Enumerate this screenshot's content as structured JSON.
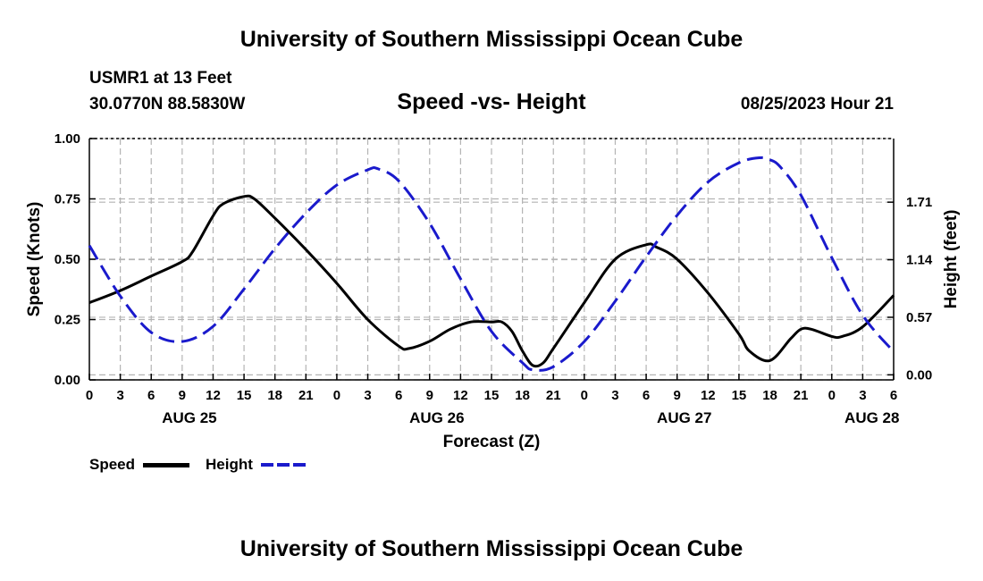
{
  "header": {
    "title": "University of Southern Mississippi Ocean Cube",
    "station": "USMR1 at 13 Feet",
    "coords": "30.0770N  88.5830W",
    "plot_title": "Speed -vs- Height",
    "datetime": "08/25/2023 Hour 21"
  },
  "footer": {
    "title": "University of Southern Mississippi Ocean Cube"
  },
  "legend": {
    "speed": "Speed",
    "height": "Height"
  },
  "colors": {
    "speed": "#000000",
    "height": "#1a1acc",
    "grid": "#b4b4b4"
  },
  "chart_data": {
    "type": "line",
    "title": "Speed -vs- Height",
    "xlabel": "Forecast (Z)",
    "ylabel": "Speed (Knots)",
    "y2label": "Height (feet)",
    "xlim": [
      0,
      78
    ],
    "ylim": [
      0,
      1.0
    ],
    "y2lim": [
      -0.05,
      2.34
    ],
    "x_ticks": [
      0,
      3,
      6,
      9,
      12,
      15,
      18,
      21,
      24,
      27,
      30,
      33,
      36,
      39,
      42,
      45,
      48,
      51,
      54,
      57,
      60,
      63,
      66,
      69,
      72,
      75,
      78
    ],
    "x_tick_labels": [
      "0",
      "3",
      "6",
      "9",
      "12",
      "15",
      "18",
      "21",
      "0",
      "3",
      "6",
      "9",
      "12",
      "15",
      "18",
      "21",
      "0",
      "3",
      "6",
      "9",
      "12",
      "15",
      "18",
      "21",
      "0",
      "3",
      "6"
    ],
    "y_ticks": [
      0,
      0.25,
      0.5,
      0.75,
      1.0
    ],
    "y_tick_labels": [
      "0.00",
      "0.25",
      "0.50",
      "0.75",
      "1.00"
    ],
    "y2_ticks": [
      0.0,
      0.57,
      1.14,
      1.71
    ],
    "y2_tick_labels": [
      "0.00",
      "0.57",
      "1.14",
      "1.71"
    ],
    "date_labels": [
      {
        "x": 9.7,
        "label": "AUG 25"
      },
      {
        "x": 33.7,
        "label": "AUG 26"
      },
      {
        "x": 57.7,
        "label": "AUG 27"
      },
      {
        "x": 75.9,
        "label": "AUG 28"
      }
    ],
    "series": [
      {
        "name": "Speed",
        "axis": "left",
        "style": "solid",
        "x": [
          0,
          3,
          6,
          9,
          10,
          12,
          13,
          15,
          16,
          18,
          21,
          24,
          27,
          30,
          31,
          33,
          35,
          37,
          39,
          40,
          41,
          42,
          43,
          44,
          45,
          48,
          51,
          54,
          55,
          57,
          60,
          63,
          64,
          66,
          68,
          69,
          70,
          72,
          73,
          75,
          78
        ],
        "values": [
          0.32,
          0.37,
          0.43,
          0.49,
          0.53,
          0.68,
          0.73,
          0.76,
          0.75,
          0.67,
          0.54,
          0.4,
          0.25,
          0.14,
          0.13,
          0.16,
          0.21,
          0.24,
          0.24,
          0.24,
          0.2,
          0.12,
          0.06,
          0.07,
          0.13,
          0.32,
          0.5,
          0.56,
          0.55,
          0.5,
          0.36,
          0.19,
          0.12,
          0.08,
          0.17,
          0.21,
          0.21,
          0.18,
          0.18,
          0.22,
          0.35
        ]
      },
      {
        "name": "Height",
        "axis": "right",
        "style": "dashed",
        "x": [
          0,
          3,
          6,
          9,
          12,
          15,
          18,
          21,
          24,
          27,
          28,
          30,
          33,
          36,
          39,
          42,
          43,
          45,
          48,
          51,
          54,
          57,
          60,
          63,
          65,
          66,
          67,
          69,
          72,
          75,
          78
        ],
        "values": [
          1.28,
          0.78,
          0.42,
          0.33,
          0.48,
          0.85,
          1.25,
          1.6,
          1.88,
          2.03,
          2.04,
          1.92,
          1.5,
          0.95,
          0.43,
          0.12,
          0.05,
          0.08,
          0.33,
          0.73,
          1.17,
          1.58,
          1.91,
          2.1,
          2.15,
          2.13,
          2.06,
          1.78,
          1.16,
          0.59,
          0.23
        ]
      }
    ]
  }
}
